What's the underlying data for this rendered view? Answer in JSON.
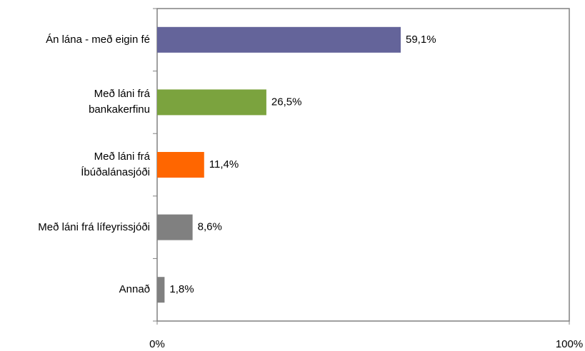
{
  "chart_data": {
    "type": "hbar",
    "categories": [
      "Án lána - með eigin fé",
      "Með láni frá\nbankakerfinu",
      "Með láni frá\nÍbúðalánasjóði",
      "Með láni frá lífeyrissjóði",
      "Annað"
    ],
    "values": [
      59.1,
      26.5,
      11.4,
      8.6,
      1.8
    ],
    "value_labels": [
      "59,1%",
      "26,5%",
      "11,4%",
      "8,6%",
      "1,8%"
    ],
    "colors": [
      "#64649a",
      "#7ba33e",
      "#ff6600",
      "#808080",
      "#808080"
    ],
    "xlim": [
      0,
      100
    ],
    "xticks": [
      {
        "value": 0,
        "label": "0%"
      },
      {
        "value": 100,
        "label": "100%"
      }
    ]
  }
}
